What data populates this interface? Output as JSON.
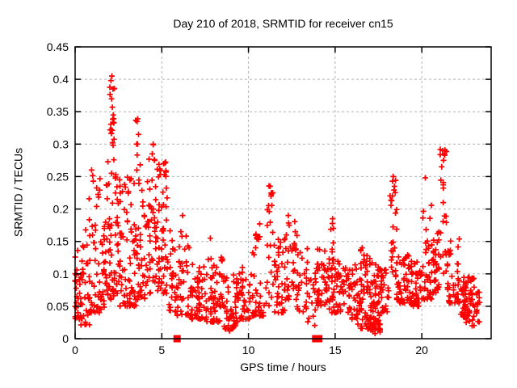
{
  "chart_data": {
    "type": "scatter",
    "title": "Day 210 of 2018, SRMTID for receiver cn15",
    "xlabel": "GPS time / hours",
    "ylabel": "SRMTID / TECUs",
    "xlim": [
      0,
      24
    ],
    "ylim": [
      0,
      0.45
    ],
    "xticks": {
      "values": [
        0,
        5,
        10,
        15,
        20
      ],
      "labels": [
        "0",
        "5",
        "10",
        "15",
        "20"
      ]
    },
    "yticks": {
      "values": [
        0,
        0.05,
        0.1,
        0.15,
        0.2,
        0.25,
        0.3,
        0.35,
        0.4,
        0.45
      ],
      "labels": [
        "0",
        "0.05",
        "0.1",
        "0.15",
        "0.2",
        "0.25",
        "0.3",
        "0.35",
        "0.4",
        "0.45"
      ]
    },
    "grid": {
      "show": true,
      "style": "dashed",
      "color": "#b3b3b3"
    },
    "frame_color": "#000000",
    "background_color": "#ffffff",
    "series": [
      {
        "name": "srmtid-measurements",
        "marker": "plus",
        "color": "#ff0000",
        "marker_size": 7,
        "seed": 1318,
        "x_column_step_hours": 0.0833,
        "cluster_bins": [
          [
            0.0,
            0.4,
            35,
            0.03,
            0.14,
            1.6
          ],
          [
            0.3,
            0.85,
            25,
            0.02,
            0.17,
            1.8
          ],
          [
            0.8,
            1.3,
            35,
            0.04,
            0.27,
            2.0
          ],
          [
            1.3,
            1.8,
            40,
            0.04,
            0.25,
            1.8
          ],
          [
            1.8,
            2.35,
            45,
            0.06,
            0.3,
            1.5
          ],
          [
            1.95,
            2.3,
            16,
            0.3,
            0.41,
            1.0
          ],
          [
            2.35,
            2.9,
            45,
            0.05,
            0.26,
            1.7
          ],
          [
            2.9,
            3.5,
            45,
            0.05,
            0.27,
            1.7
          ],
          [
            3.5,
            3.75,
            6,
            0.26,
            0.345,
            1.0
          ],
          [
            3.5,
            4.1,
            40,
            0.06,
            0.25,
            1.6
          ],
          [
            4.1,
            4.65,
            40,
            0.07,
            0.3,
            1.5
          ],
          [
            4.65,
            5.35,
            60,
            0.07,
            0.275,
            1.4
          ],
          [
            5.35,
            5.8,
            25,
            0.04,
            0.17,
            1.6
          ],
          [
            5.8,
            6.6,
            40,
            0.035,
            0.16,
            2.0
          ],
          [
            6.6,
            7.6,
            60,
            0.03,
            0.115,
            1.6
          ],
          [
            7.6,
            8.6,
            60,
            0.025,
            0.13,
            1.7
          ],
          [
            8.6,
            9.4,
            50,
            0.015,
            0.1,
            1.5
          ],
          [
            9.4,
            10.2,
            40,
            0.03,
            0.11,
            1.6
          ],
          [
            10.2,
            10.9,
            40,
            0.035,
            0.18,
            2.2
          ],
          [
            11.0,
            11.4,
            20,
            0.05,
            0.24,
            1.6
          ],
          [
            11.4,
            12.1,
            40,
            0.04,
            0.155,
            1.5
          ],
          [
            12.1,
            12.8,
            35,
            0.06,
            0.19,
            1.6
          ],
          [
            12.8,
            13.4,
            25,
            0.04,
            0.16,
            1.6
          ],
          [
            13.4,
            13.9,
            15,
            0.02,
            0.105,
            1.5
          ],
          [
            13.9,
            14.6,
            40,
            0.05,
            0.145,
            1.5
          ],
          [
            14.75,
            15.0,
            12,
            0.08,
            0.185,
            1.2
          ],
          [
            14.6,
            15.6,
            50,
            0.04,
            0.125,
            1.5
          ],
          [
            15.6,
            16.3,
            40,
            0.03,
            0.12,
            1.6
          ],
          [
            16.3,
            17.0,
            55,
            0.015,
            0.145,
            1.7
          ],
          [
            17.0,
            17.6,
            70,
            0.01,
            0.12,
            1.7
          ],
          [
            17.6,
            18.1,
            25,
            0.04,
            0.11,
            1.5
          ],
          [
            18.15,
            18.55,
            25,
            0.09,
            0.25,
            1.6
          ],
          [
            18.55,
            19.4,
            55,
            0.055,
            0.13,
            1.6
          ],
          [
            19.4,
            20.0,
            45,
            0.05,
            0.12,
            1.5
          ],
          [
            20.0,
            20.55,
            35,
            0.06,
            0.21,
            1.8
          ],
          [
            20.55,
            21.05,
            35,
            0.07,
            0.165,
            1.5
          ],
          [
            21.05,
            21.45,
            22,
            0.1,
            0.295,
            1.3
          ],
          [
            21.45,
            22.25,
            45,
            0.055,
            0.16,
            1.7
          ],
          [
            22.25,
            23.05,
            70,
            0.025,
            0.095,
            1.5
          ],
          [
            23.0,
            23.35,
            15,
            0.02,
            0.075,
            1.3
          ]
        ],
        "outlier_points": [
          [
            0.95,
            0.26
          ],
          [
            1.05,
            0.243
          ],
          [
            2.12,
            0.405
          ],
          [
            2.07,
            0.398
          ],
          [
            2.18,
            0.385
          ],
          [
            2.1,
            0.37
          ],
          [
            2.15,
            0.357
          ],
          [
            2.2,
            0.345
          ],
          [
            3.58,
            0.335
          ],
          [
            3.66,
            0.315
          ],
          [
            3.55,
            0.3
          ],
          [
            4.5,
            0.3
          ],
          [
            4.45,
            0.285
          ],
          [
            5.1,
            0.27
          ],
          [
            5.15,
            0.253
          ],
          [
            6.2,
            0.19
          ],
          [
            6.1,
            0.165
          ],
          [
            7.8,
            0.155
          ],
          [
            10.65,
            0.177
          ],
          [
            11.25,
            0.235
          ],
          [
            11.3,
            0.22
          ],
          [
            11.2,
            0.196
          ],
          [
            12.3,
            0.19
          ],
          [
            12.35,
            0.175
          ],
          [
            12.7,
            0.165
          ],
          [
            14.85,
            0.185
          ],
          [
            14.9,
            0.17
          ],
          [
            18.35,
            0.25
          ],
          [
            18.42,
            0.235
          ],
          [
            18.3,
            0.22
          ],
          [
            20.2,
            0.248
          ],
          [
            21.2,
            0.29
          ],
          [
            21.25,
            0.275
          ],
          [
            21.15,
            0.265
          ],
          [
            22.9,
            0.02
          ],
          [
            17.3,
            0.008
          ],
          [
            8.9,
            0.012
          ],
          [
            9.0,
            0.015
          ]
        ]
      },
      {
        "name": "axis-flag-markers",
        "marker": "filled-square",
        "color": "#ff0000",
        "marker_size": 9,
        "points": [
          [
            5.88,
            0
          ],
          [
            13.88,
            0
          ],
          [
            14.05,
            0
          ]
        ]
      }
    ]
  }
}
